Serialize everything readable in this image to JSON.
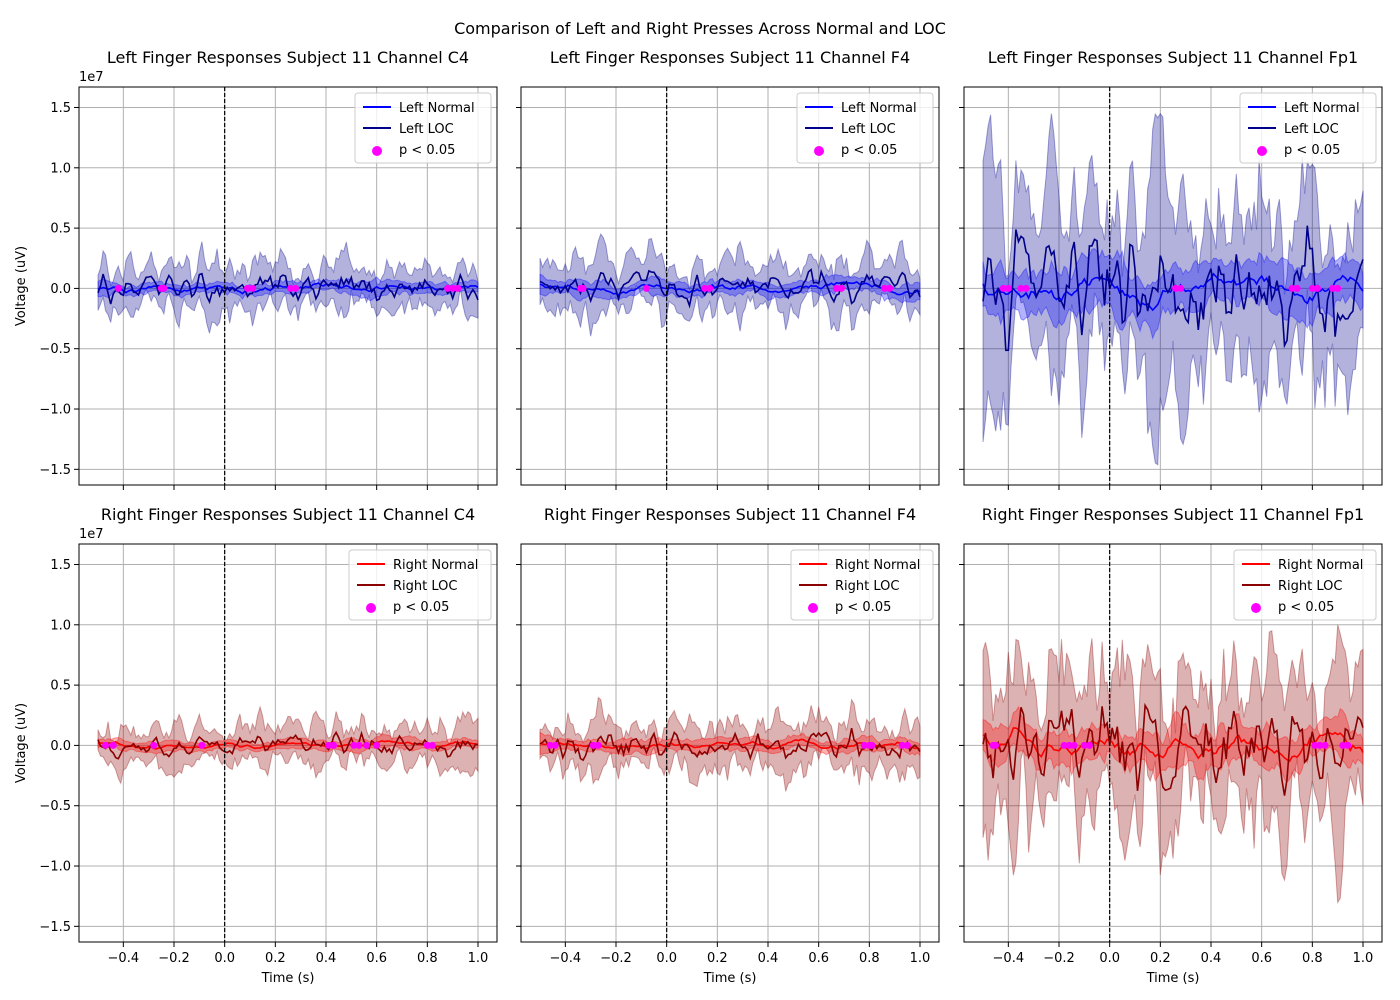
{
  "figure": {
    "suptitle": "Comparison of Left and Right Presses Across Normal and LOC"
  },
  "colors": {
    "left_normal": "#0000ff",
    "left_loc": "#00008b",
    "left_band": "#00008b",
    "right_normal": "#ff0000",
    "right_loc": "#8b0000",
    "right_band": "#8b0000",
    "significance": "#ff00ff"
  },
  "chart_data": [
    {
      "type": "line",
      "title": "Left Finger Responses Subject 11 Channel C4",
      "hand": "left",
      "amplitude": 1.0,
      "xlabel": "",
      "ylabel": "Voltage (uV)",
      "offset_label": "1e7",
      "xlim": [
        -0.575,
        1.075
      ],
      "ylim": [
        -1.63,
        1.67
      ],
      "xticks": [
        "−0.4",
        "−0.2",
        "0.0",
        "0.2",
        "0.4",
        "0.6",
        "0.8",
        "1.0"
      ],
      "yticks": [
        "−1.5",
        "−1.0",
        "−0.5",
        "0.0",
        "0.5",
        "1.0",
        "1.5"
      ],
      "series": [
        {
          "name": "Left Normal"
        },
        {
          "name": "Left LOC"
        },
        {
          "name": "p < 0.05"
        }
      ],
      "sig_x": [
        -0.42,
        -0.25,
        -0.24,
        0.09,
        0.11,
        0.26,
        0.28,
        0.88,
        0.9,
        0.92
      ],
      "grid": true,
      "legend": "upper right"
    },
    {
      "type": "line",
      "title": "Left Finger Responses Subject 11 Channel F4",
      "hand": "left",
      "amplitude": 1.2,
      "xlabel": "",
      "ylabel": "",
      "offset_label": "",
      "xlim": [
        -0.575,
        1.075
      ],
      "ylim": [
        -1.63,
        1.67
      ],
      "xticks": [
        "−0.4",
        "−0.2",
        "0.0",
        "0.2",
        "0.4",
        "0.6",
        "0.8",
        "1.0"
      ],
      "yticks": [
        "−1.5",
        "−1.0",
        "−0.5",
        "0.0",
        "0.5",
        "1.0",
        "1.5"
      ],
      "series": [
        {
          "name": "Left Normal"
        },
        {
          "name": "Left LOC"
        },
        {
          "name": "p < 0.05"
        }
      ],
      "sig_x": [
        -0.34,
        -0.33,
        -0.08,
        0.15,
        0.17,
        0.67,
        0.69,
        0.86,
        0.88
      ],
      "grid": true,
      "legend": "upper right"
    },
    {
      "type": "line",
      "title": "Left Finger Responses Subject 11 Channel Fp1",
      "hand": "left",
      "amplitude": 4.0,
      "xlabel": "",
      "ylabel": "",
      "offset_label": "",
      "xlim": [
        -0.575,
        1.075
      ],
      "ylim": [
        -1.63,
        1.67
      ],
      "xticks": [
        "−0.4",
        "−0.2",
        "0.0",
        "0.2",
        "0.4",
        "0.6",
        "0.8",
        "1.0"
      ],
      "yticks": [
        "−1.5",
        "−1.0",
        "−0.5",
        "0.0",
        "0.5",
        "1.0",
        "1.5"
      ],
      "series": [
        {
          "name": "Left Normal"
        },
        {
          "name": "Left LOC"
        },
        {
          "name": "p < 0.05"
        }
      ],
      "sig_x": [
        -0.42,
        -0.4,
        -0.35,
        -0.33,
        0.26,
        0.28,
        0.72,
        0.74,
        0.8,
        0.82,
        0.88,
        0.9
      ],
      "grid": true,
      "legend": "upper right"
    },
    {
      "type": "line",
      "title": "Right Finger Responses Subject 11 Channel C4",
      "hand": "right",
      "amplitude": 0.85,
      "xlabel": "Time (s)",
      "ylabel": "Voltage (uV)",
      "offset_label": "1e7",
      "xlim": [
        -0.575,
        1.075
      ],
      "ylim": [
        -1.63,
        1.67
      ],
      "xticks": [
        "−0.4",
        "−0.2",
        "0.0",
        "0.2",
        "0.4",
        "0.6",
        "0.8",
        "1.0"
      ],
      "yticks": [
        "−1.5",
        "−1.0",
        "−0.5",
        "0.0",
        "0.5",
        "1.0",
        "1.5"
      ],
      "series": [
        {
          "name": "Right Normal"
        },
        {
          "name": "Right LOC"
        },
        {
          "name": "p < 0.05"
        }
      ],
      "sig_x": [
        -0.47,
        -0.44,
        -0.28,
        -0.09,
        0.41,
        0.43,
        0.51,
        0.53,
        0.56,
        0.6,
        0.8,
        0.82
      ],
      "grid": true,
      "legend": "upper right"
    },
    {
      "type": "line",
      "title": "Right Finger Responses Subject 11 Channel F4",
      "hand": "right",
      "amplitude": 1.1,
      "xlabel": "Time (s)",
      "ylabel": "",
      "offset_label": "",
      "xlim": [
        -0.575,
        1.075
      ],
      "ylim": [
        -1.63,
        1.67
      ],
      "xticks": [
        "−0.4",
        "−0.2",
        "0.0",
        "0.2",
        "0.4",
        "0.6",
        "0.8",
        "1.0"
      ],
      "yticks": [
        "−1.5",
        "−1.0",
        "−0.5",
        "0.0",
        "0.5",
        "1.0",
        "1.5"
      ],
      "series": [
        {
          "name": "Right Normal"
        },
        {
          "name": "Right LOC"
        },
        {
          "name": "p < 0.05"
        }
      ],
      "sig_x": [
        -0.46,
        -0.44,
        -0.29,
        -0.27,
        0.78,
        0.8,
        0.81,
        0.93,
        0.95
      ],
      "grid": true,
      "legend": "upper right"
    },
    {
      "type": "line",
      "title": "Right Finger Responses Subject 11 Channel Fp1",
      "hand": "right",
      "amplitude": 3.2,
      "xlabel": "Time (s)",
      "ylabel": "",
      "offset_label": "",
      "xlim": [
        -0.575,
        1.075
      ],
      "ylim": [
        -1.63,
        1.67
      ],
      "xticks": [
        "−0.4",
        "−0.2",
        "0.0",
        "0.2",
        "0.4",
        "0.6",
        "0.8",
        "1.0"
      ],
      "yticks": [
        "−1.5",
        "−1.0",
        "−0.5",
        "0.0",
        "0.5",
        "1.0",
        "1.5"
      ],
      "series": [
        {
          "name": "Right Normal"
        },
        {
          "name": "Right LOC"
        },
        {
          "name": "p < 0.05"
        }
      ],
      "sig_x": [
        -0.46,
        -0.45,
        -0.18,
        -0.16,
        -0.14,
        -0.1,
        -0.08,
        0.81,
        0.83,
        0.85,
        0.92,
        0.94
      ],
      "grid": true,
      "legend": "upper right"
    }
  ]
}
